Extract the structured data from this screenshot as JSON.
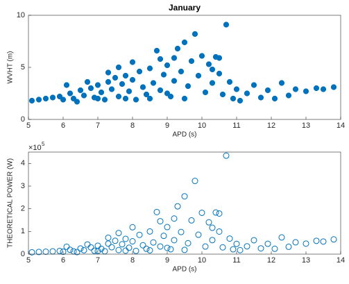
{
  "chart_data": [
    {
      "type": "scatter",
      "title": "January",
      "xlabel": "APD (s)",
      "ylabel": "WVHT (m)",
      "color": "#0072bd",
      "filled": true,
      "xlim": [
        5,
        14
      ],
      "xticks": [
        5,
        6,
        7,
        8,
        9,
        10,
        11,
        12,
        13,
        14
      ],
      "ylim": [
        0,
        10
      ],
      "yticks": [
        0,
        5,
        10
      ],
      "x": [
        5.1,
        5.3,
        5.5,
        5.7,
        5.9,
        6.0,
        6.2,
        6.3,
        6.5,
        6.6,
        6.8,
        6.9,
        7.0,
        7.1,
        7.2,
        7.3,
        7.4,
        7.5,
        7.6,
        7.7,
        7.8,
        7.9,
        8.0,
        8.1,
        8.2,
        8.3,
        8.4,
        8.5,
        8.6,
        8.7,
        8.8,
        8.9,
        9.0,
        9.1,
        9.2,
        9.3,
        9.4,
        9.5,
        9.6,
        9.7,
        9.8,
        9.9,
        10.0,
        10.1,
        10.2,
        10.3,
        10.4,
        10.5,
        10.6,
        10.7,
        10.8,
        10.9,
        11.0,
        11.1,
        11.3,
        11.5,
        11.7,
        11.9,
        12.1,
        12.3,
        12.5,
        12.7,
        13.0,
        13.3,
        13.5,
        13.8,
        6.4,
        7.0,
        7.8,
        8.5,
        9.0,
        9.5,
        8.0,
        8.8,
        9.2,
        10.3,
        10.5,
        7.3,
        7.6,
        6.7,
        6.1
      ],
      "y": [
        1.8,
        1.9,
        2.0,
        2.1,
        2.2,
        1.9,
        2.5,
        2.0,
        2.8,
        2.3,
        3.0,
        2.1,
        3.3,
        2.6,
        1.9,
        3.6,
        2.9,
        4.0,
        2.2,
        3.4,
        4.2,
        2.7,
        3.8,
        1.9,
        4.6,
        3.1,
        2.4,
        4.9,
        3.5,
        6.6,
        2.8,
        4.3,
        5.2,
        2.2,
        3.7,
        6.8,
        4.6,
        7.4,
        3.2,
        5.6,
        8.2,
        4.2,
        6.1,
        2.6,
        5.3,
        3.5,
        6.0,
        4.4,
        2.4,
        9.1,
        3.6,
        2.0,
        2.9,
        1.8,
        2.5,
        3.3,
        2.1,
        2.8,
        2.0,
        3.5,
        2.3,
        2.9,
        2.7,
        3.0,
        2.9,
        3.1,
        1.7,
        2.0,
        2.0,
        2.0,
        2.5,
        2.0,
        5.5,
        5.8,
        5.9,
        4.8,
        5.9,
        4.5,
        5.0,
        3.6,
        3.3
      ]
    },
    {
      "type": "scatter",
      "xlabel": "APD (s)",
      "ylabel": "THEORETICAL POWER (W)",
      "color": "#0072bd",
      "filled": false,
      "y_exponent": "×10",
      "y_exponent_power": "5",
      "xlim": [
        5,
        14
      ],
      "xticks": [
        5,
        6,
        7,
        8,
        9,
        10,
        11,
        12,
        13,
        14
      ],
      "ylim": [
        0,
        450000
      ],
      "yticks": [
        0,
        {
          "value": 100000,
          "label": "1"
        },
        {
          "value": 200000,
          "label": "2"
        },
        {
          "value": 300000,
          "label": "3"
        },
        {
          "value": 400000,
          "label": "4"
        }
      ],
      "x": [
        5.1,
        5.3,
        5.5,
        5.7,
        5.9,
        6.0,
        6.2,
        6.3,
        6.5,
        6.6,
        6.8,
        6.9,
        7.0,
        7.1,
        7.2,
        7.3,
        7.4,
        7.5,
        7.6,
        7.7,
        7.8,
        7.9,
        8.0,
        8.1,
        8.2,
        8.3,
        8.4,
        8.5,
        8.6,
        8.7,
        8.8,
        8.9,
        9.0,
        9.1,
        9.2,
        9.3,
        9.4,
        9.5,
        9.6,
        9.7,
        9.8,
        9.9,
        10.0,
        10.1,
        10.2,
        10.3,
        10.4,
        10.5,
        10.6,
        10.7,
        10.8,
        10.9,
        11.0,
        11.1,
        11.3,
        11.5,
        11.7,
        11.9,
        12.1,
        12.3,
        12.5,
        12.7,
        13.0,
        13.3,
        13.5,
        13.8,
        6.4,
        7.0,
        7.8,
        8.5,
        9.0,
        9.5,
        8.0,
        8.8,
        9.2,
        10.3,
        10.5,
        7.3,
        7.6,
        6.7,
        6.1
      ],
      "y": [
        8100,
        9400,
        10800,
        12300,
        14000,
        10600,
        19000,
        12300,
        25000,
        17100,
        30000,
        14900,
        37300,
        23500,
        12700,
        46400,
        30500,
        58800,
        18000,
        43600,
        67400,
        28200,
        56600,
        14300,
        85000,
        39100,
        23700,
        100000,
        51600,
        185700,
        33800,
        80600,
        119200,
        21600,
        61700,
        210700,
        97500,
        254900,
        48200,
        149000,
        322900,
        85600,
        182300,
        33500,
        140400,
        61800,
        183500,
        99600,
        29900,
        434200,
        68600,
        21400,
        45300,
        17600,
        34600,
        61400,
        25300,
        45700,
        23700,
        73800,
        32400,
        52300,
        46400,
        58700,
        55600,
        65000,
        9100,
        13700,
        15300,
        16700,
        27600,
        18600,
        118600,
        145100,
        156900,
        116300,
        179100,
        72400,
        93100,
        42500,
        32600
      ]
    }
  ]
}
